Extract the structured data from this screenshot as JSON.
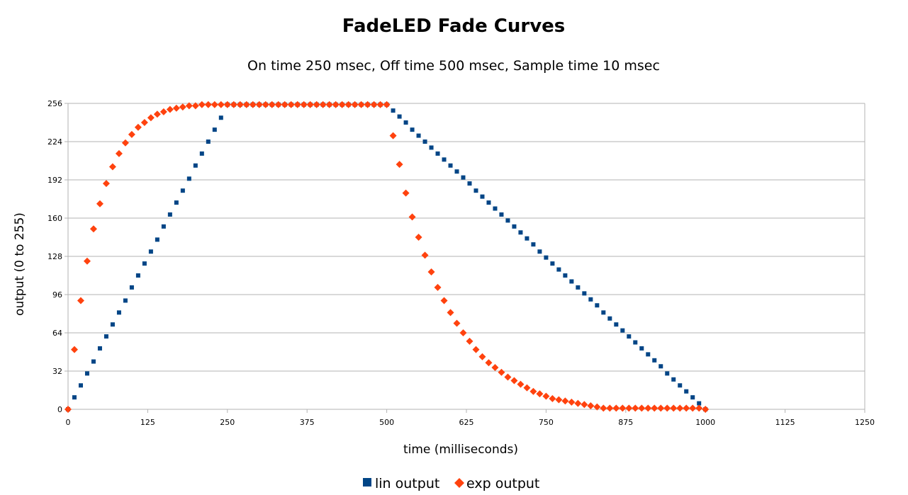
{
  "chart_data": {
    "type": "scatter",
    "title": "FadeLED Fade Curves",
    "subtitle": "On time 250 msec, Off time 500 msec, Sample time 10 msec",
    "xlabel": "time (milliseconds)",
    "ylabel": "output (0 to 255)",
    "xlim": [
      0,
      1250
    ],
    "ylim": [
      0,
      256
    ],
    "xticks": [
      0,
      125,
      250,
      375,
      500,
      625,
      750,
      875,
      1000,
      1125,
      1250
    ],
    "yticks": [
      0,
      32,
      64,
      96,
      128,
      160,
      192,
      224,
      256
    ],
    "grid": true,
    "legend_position": "bottom",
    "series": [
      {
        "name": "lin output",
        "marker": "square",
        "color": "#004586",
        "x": [
          0,
          10,
          20,
          30,
          40,
          50,
          60,
          70,
          80,
          90,
          100,
          110,
          120,
          130,
          140,
          150,
          160,
          170,
          180,
          190,
          200,
          210,
          220,
          230,
          240,
          250,
          260,
          270,
          280,
          290,
          300,
          310,
          320,
          330,
          340,
          350,
          360,
          370,
          380,
          390,
          400,
          410,
          420,
          430,
          440,
          450,
          460,
          470,
          480,
          490,
          500,
          510,
          520,
          530,
          540,
          550,
          560,
          570,
          580,
          590,
          600,
          610,
          620,
          630,
          640,
          650,
          660,
          670,
          680,
          690,
          700,
          710,
          720,
          730,
          740,
          750,
          760,
          770,
          780,
          790,
          800,
          810,
          820,
          830,
          840,
          850,
          860,
          870,
          880,
          890,
          900,
          910,
          920,
          930,
          940,
          950,
          960,
          970,
          980,
          990,
          1000
        ],
        "y": [
          0,
          10,
          20,
          30,
          40,
          51,
          61,
          71,
          81,
          91,
          102,
          112,
          122,
          132,
          142,
          153,
          163,
          173,
          183,
          193,
          204,
          214,
          224,
          234,
          244,
          255,
          255,
          255,
          255,
          255,
          255,
          255,
          255,
          255,
          255,
          255,
          255,
          255,
          255,
          255,
          255,
          255,
          255,
          255,
          255,
          255,
          255,
          255,
          255,
          255,
          255,
          250,
          245,
          240,
          234,
          229,
          224,
          219,
          214,
          209,
          204,
          199,
          194,
          189,
          183,
          178,
          173,
          168,
          163,
          158,
          153,
          148,
          143,
          138,
          132,
          127,
          122,
          117,
          112,
          107,
          102,
          97,
          92,
          87,
          81,
          76,
          71,
          66,
          61,
          56,
          51,
          46,
          41,
          36,
          30,
          25,
          20,
          15,
          10,
          5,
          0
        ]
      },
      {
        "name": "exp output",
        "marker": "diamond",
        "color": "#ff420e",
        "x": [
          0,
          10,
          20,
          30,
          40,
          50,
          60,
          70,
          80,
          90,
          100,
          110,
          120,
          130,
          140,
          150,
          160,
          170,
          180,
          190,
          200,
          210,
          220,
          230,
          240,
          250,
          260,
          270,
          280,
          290,
          300,
          310,
          320,
          330,
          340,
          350,
          360,
          370,
          380,
          390,
          400,
          410,
          420,
          430,
          440,
          450,
          460,
          470,
          480,
          490,
          500,
          510,
          520,
          530,
          540,
          550,
          560,
          570,
          580,
          590,
          600,
          610,
          620,
          630,
          640,
          650,
          660,
          670,
          680,
          690,
          700,
          710,
          720,
          730,
          740,
          750,
          760,
          770,
          780,
          790,
          800,
          810,
          820,
          830,
          840,
          850,
          860,
          870,
          880,
          890,
          900,
          910,
          920,
          930,
          940,
          950,
          960,
          970,
          980,
          990,
          1000
        ],
        "y": [
          0,
          50,
          91,
          124,
          151,
          172,
          189,
          203,
          214,
          223,
          230,
          236,
          240,
          244,
          247,
          249,
          251,
          252,
          253,
          254,
          254,
          255,
          255,
          255,
          255,
          255,
          255,
          255,
          255,
          255,
          255,
          255,
          255,
          255,
          255,
          255,
          255,
          255,
          255,
          255,
          255,
          255,
          255,
          255,
          255,
          255,
          255,
          255,
          255,
          255,
          255,
          229,
          205,
          181,
          161,
          144,
          129,
          115,
          102,
          91,
          81,
          72,
          64,
          57,
          50,
          44,
          39,
          35,
          31,
          27,
          24,
          21,
          18,
          15,
          13,
          11,
          9,
          8,
          7,
          6,
          5,
          4,
          3,
          2,
          1,
          1,
          1,
          1,
          1,
          1,
          1,
          1,
          1,
          1,
          1,
          1,
          1,
          1,
          1,
          1,
          0
        ]
      }
    ]
  }
}
